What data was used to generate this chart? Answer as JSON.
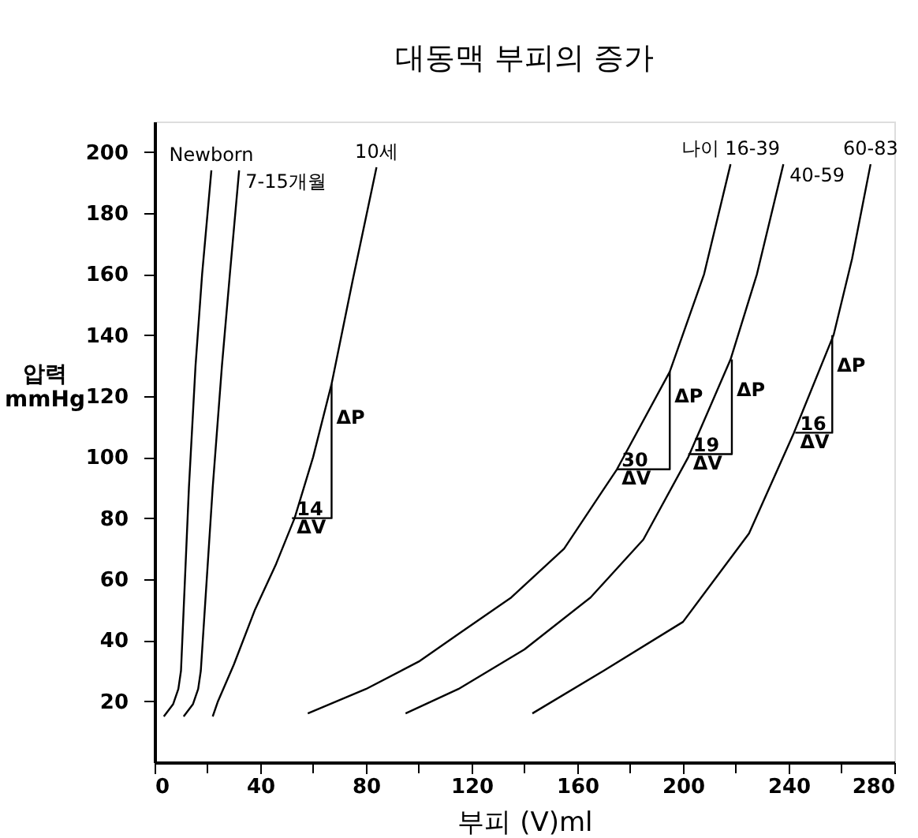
{
  "chart_data": {
    "type": "line",
    "title": "대동맥 부피의 증가",
    "xlabel": "부피 (V)ml",
    "ylabel": "압력 mmHg",
    "xlim": [
      0,
      280
    ],
    "ylim": [
      0,
      210
    ],
    "xticks": [
      0,
      {
        "value": 20,
        "label": null
      },
      40,
      {
        "value": 60,
        "label": null
      },
      80,
      {
        "value": 100,
        "label": null
      },
      120,
      {
        "value": 140,
        "label": null
      },
      160,
      {
        "value": 180,
        "label": null
      },
      200,
      {
        "value": 220,
        "label": null
      },
      240,
      {
        "value": 260,
        "label": null
      },
      280
    ],
    "yticks": [
      20,
      40,
      60,
      80,
      100,
      120,
      140,
      160,
      180,
      200
    ],
    "grid": false,
    "marker": "none",
    "line_style": "solid",
    "series": [
      {
        "name": "Newborn",
        "color": "#000000",
        "x": [
          3.5,
          7,
          9,
          10,
          11,
          13,
          15.5,
          18,
          21.5
        ],
        "values": [
          15,
          19,
          24,
          30,
          50,
          90,
          130,
          160,
          194
        ]
      },
      {
        "name": "7-15개월",
        "color": "#000000",
        "x": [
          11,
          14.5,
          16.5,
          17.5,
          19,
          22,
          25.5,
          28.5,
          32
        ],
        "values": [
          15,
          19,
          24,
          30,
          50,
          90,
          130,
          160,
          194
        ]
      },
      {
        "name": "10세",
        "color": "#000000",
        "x": [
          22,
          24,
          30,
          38,
          46,
          53,
          60,
          67,
          75,
          84
        ],
        "values": [
          15,
          20,
          32,
          50,
          65,
          80,
          100,
          124,
          158,
          195
        ]
      },
      {
        "name": "나이 16-39",
        "color": "#000000",
        "x": [
          58,
          80,
          100,
          115,
          135,
          155,
          175,
          195,
          208,
          218
        ],
        "values": [
          16,
          24,
          33,
          42,
          54,
          70,
          96,
          128,
          160,
          196
        ]
      },
      {
        "name": "40-59",
        "color": "#000000",
        "x": [
          95,
          115,
          140,
          165,
          185,
          202,
          218,
          228,
          238
        ],
        "values": [
          16,
          24,
          37,
          54,
          73,
          100,
          132,
          160,
          196
        ]
      },
      {
        "name": "60-83",
        "color": "#000000",
        "x": [
          143,
          170,
          200,
          225,
          242,
          257,
          264,
          271
        ],
        "values": [
          16,
          30,
          46,
          75,
          108,
          140,
          165,
          196
        ]
      },
      {
        "color": "#000000",
        "x": [
          52,
          67,
          67
        ],
        "values": [
          80,
          80,
          124
        ]
      },
      {
        "color": "#000000",
        "x": [
          175,
          195,
          195
        ],
        "values": [
          96,
          96,
          128
        ]
      },
      {
        "color": "#000000",
        "x": [
          202,
          218.5,
          218.5
        ],
        "values": [
          101,
          101,
          132
        ]
      },
      {
        "color": "#000000",
        "x": [
          242.5,
          256.5,
          256.5
        ],
        "values": [
          108,
          108,
          140
        ]
      }
    ],
    "annotations": [
      {
        "text": "14",
        "x": 52,
        "y": 83
      },
      {
        "text": "ΔV",
        "x": 52,
        "y": 77
      },
      {
        "text": "ΔP",
        "x": 67,
        "y": 113
      },
      {
        "text": "30",
        "x": 175,
        "y": 99
      },
      {
        "text": "ΔV",
        "x": 175,
        "y": 93
      },
      {
        "text": "ΔP",
        "x": 195,
        "y": 120
      },
      {
        "text": "19",
        "x": 202,
        "y": 104
      },
      {
        "text": "ΔV",
        "x": 202,
        "y": 98
      },
      {
        "text": "ΔP",
        "x": 218.5,
        "y": 122
      },
      {
        "text": "16",
        "x": 242.5,
        "y": 111
      },
      {
        "text": "ΔV",
        "x": 242.5,
        "y": 105
      },
      {
        "text": "ΔP",
        "x": 256.5,
        "y": 130
      }
    ]
  }
}
